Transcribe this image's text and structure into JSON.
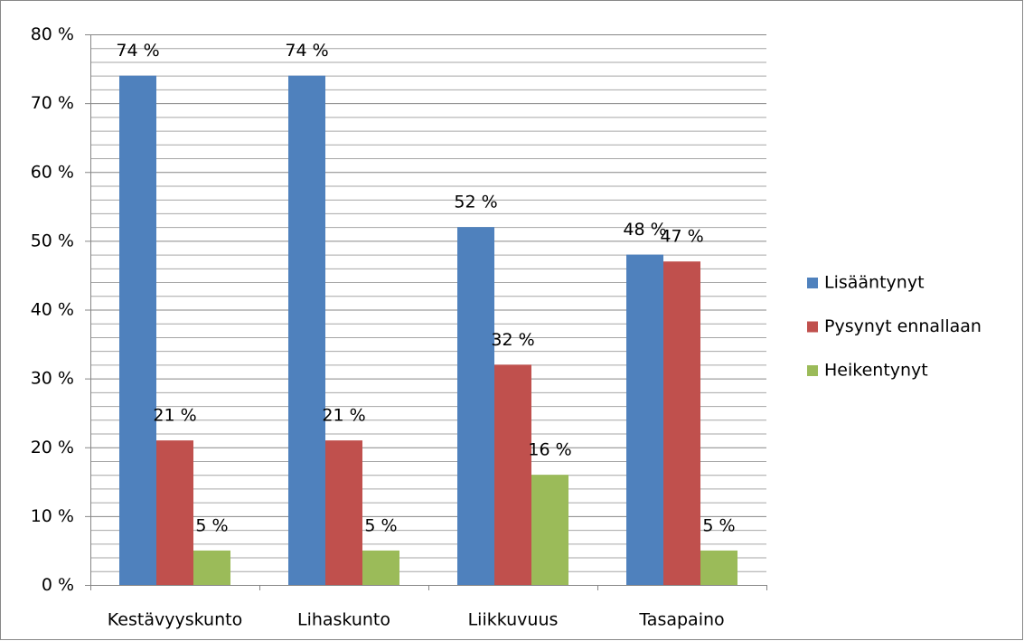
{
  "chart_data": {
    "type": "bar",
    "categories": [
      "Kestävyyskunto",
      "Lihaskunto",
      "Liikkuvuus",
      "Tasapaino"
    ],
    "series": [
      {
        "name": "Lisääntynyt",
        "color": "#4f81bd",
        "values": [
          74,
          74,
          52,
          48
        ],
        "value_labels": [
          "74 %",
          "74 %",
          "52 %",
          "48 %"
        ]
      },
      {
        "name": "Pysynyt ennallaan",
        "color": "#c0504d",
        "values": [
          21,
          21,
          32,
          47
        ],
        "value_labels": [
          "21 %",
          "21 %",
          "32 %",
          "47 %"
        ]
      },
      {
        "name": "Heikentynyt",
        "color": "#9bbb59",
        "values": [
          5,
          5,
          16,
          5
        ],
        "value_labels": [
          "5 %",
          "5 %",
          "16 %",
          "5 %"
        ]
      }
    ],
    "ylim": [
      0,
      80
    ],
    "yticks": [
      {
        "value": 0,
        "label": "0 %"
      },
      {
        "value": 10,
        "label": "10 %"
      },
      {
        "value": 20,
        "label": "20 %"
      },
      {
        "value": 30,
        "label": "30 %"
      },
      {
        "value": 40,
        "label": "40 %"
      },
      {
        "value": 50,
        "label": "50 %"
      },
      {
        "value": 60,
        "label": "60 %"
      },
      {
        "value": 70,
        "label": "70 %"
      },
      {
        "value": 80,
        "label": "80 %"
      }
    ],
    "minor_yticks": [
      2,
      4,
      6,
      8,
      12,
      14,
      16,
      18,
      22,
      24,
      26,
      28,
      32,
      34,
      36,
      38,
      42,
      44,
      46,
      48,
      52,
      54,
      56,
      58,
      62,
      64,
      66,
      68,
      72,
      74,
      76,
      78
    ],
    "grid": true,
    "legend": "right"
  }
}
